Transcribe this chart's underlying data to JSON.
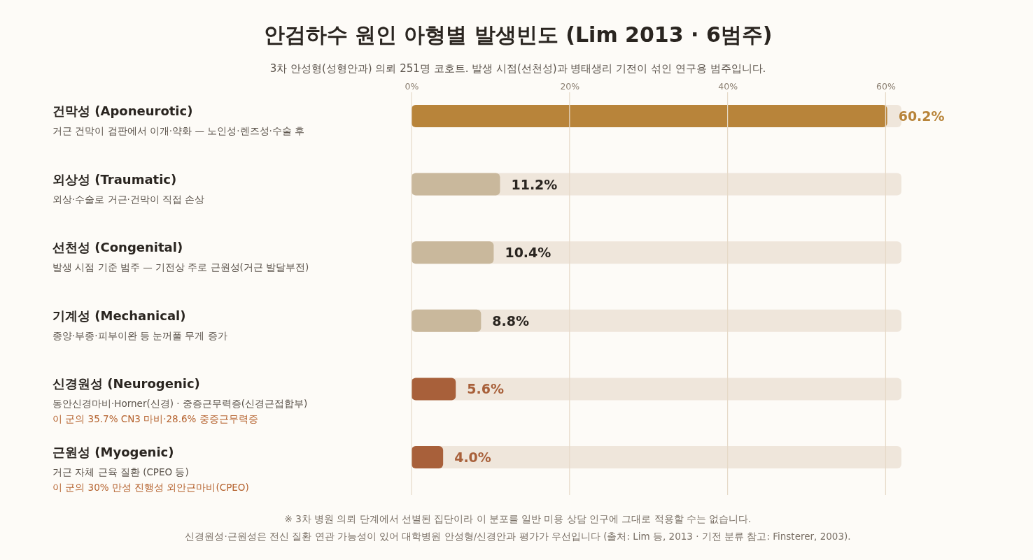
{
  "chart_data": {
    "type": "bar",
    "orientation": "horizontal",
    "title": "안검하수 원인 아형별 발생빈도 (Lim 2013 · 6범주)",
    "subtitle": "3차 안성형(성형안과) 의뢰 251명 코호트. 발생 시점(선천성)과 병태생리 기전이 섞인 연구용 범주입니다.",
    "categories": [
      "건막성 (Aponeurotic)\n거근 건막이 검판에서 이개·약화 — 노인성·렌즈성·수술 후",
      "외상성 (Traumatic)\n외상·수술로 거근·건막이 직접 손상",
      "선천성 (Congenital)\n발생 시점 기준 범주 — 기전상 주로 근원성(거근 발달부전)",
      "기계성 (Mechanical)\n종양·부종·피부이완 등 눈꺼풀 무게 증가",
      "신경원성 (Neurogenic)\n동안신경마비·Horner(신경) · 중증근무력증(신경근접합부)\n이 군의 35.7% CN3 마비·28.6% 중증근무력증",
      "근원성 (Myogenic)\n거근 자체 근육 질환 (CPEO 등)\n이 군의 30% 만성 진행성 외안근마비(CPEO)"
    ],
    "values": [
      60.2,
      11.2,
      10.4,
      8.8,
      5.6,
      4.0
    ],
    "colors": [
      "#b8843a",
      "#c9b89c",
      "#c9b89c",
      "#c9b89c",
      "#a8603a",
      "#a8603a"
    ],
    "value_labels": [
      "60.2%",
      "11.2%",
      "10.4%",
      "8.8%",
      "5.6%",
      "4.0%"
    ],
    "xlim": [
      0,
      62
    ],
    "xticks": [
      {
        "value": 0,
        "label": "0%"
      },
      {
        "value": 20,
        "label": "20%"
      },
      {
        "value": 40,
        "label": "40%"
      },
      {
        "value": 60,
        "label": "60%"
      }
    ],
    "grid": "x",
    "annotations": [
      "※ 3차 병원 의뢰 단계에서 선별된 집단이라 이 분포를 일반 미용 상담 인구에 그대로 적용할 수는 없습니다.",
      "신경원성·근원성은 전신 질환 연관 가능성이 있어 대학병원 안성형/신경안과 평가가 우선입니다 (출처: Lim 등, 2013 · 기전 분류 참고: Finsterer, 2003)."
    ]
  }
}
